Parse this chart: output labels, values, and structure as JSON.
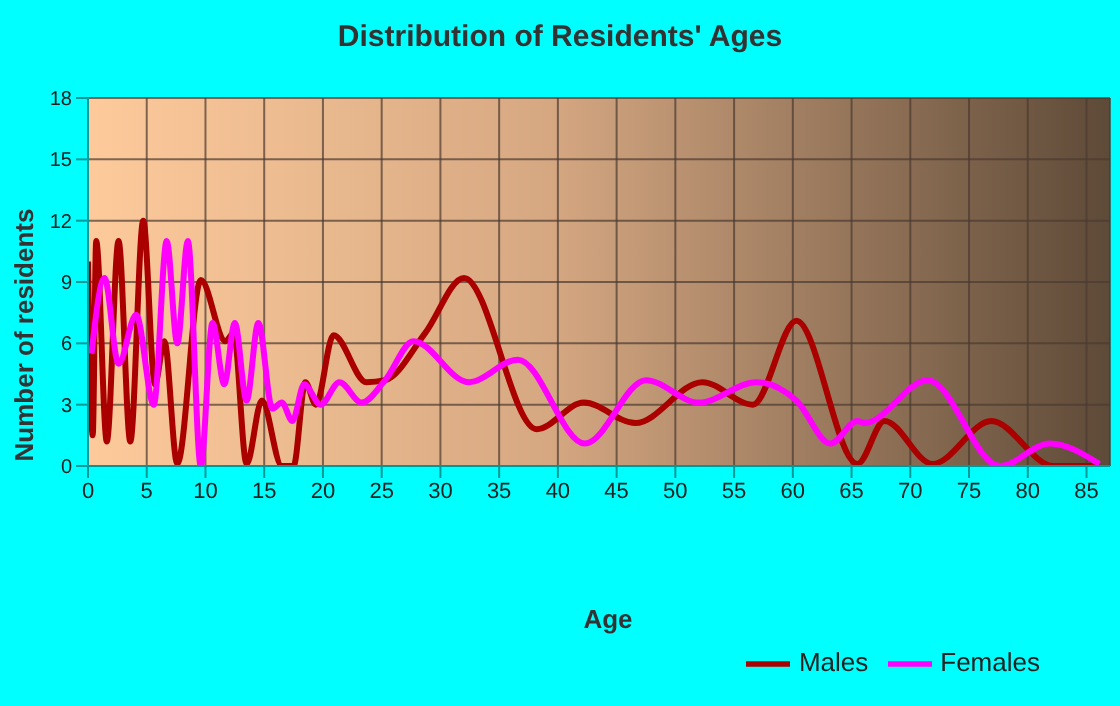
{
  "chart_data": {
    "type": "line",
    "title": "Distribution of Residents' Ages",
    "xlabel": "Age",
    "ylabel": "Number of residents",
    "xlim": [
      0,
      87
    ],
    "xticks": [
      0,
      5,
      10,
      15,
      20,
      25,
      30,
      35,
      40,
      45,
      50,
      55,
      60,
      65,
      70,
      75,
      80,
      85
    ],
    "ylim": [
      0,
      18
    ],
    "yticks": [
      0,
      3,
      6,
      9,
      12,
      15,
      18
    ],
    "grid": true,
    "legend": "bottom right",
    "marker": "none",
    "line_style": "solid",
    "series": [
      {
        "name": "Males",
        "color": "#aa0000",
        "x": [
          0,
          0.4,
          0.7,
          1.6,
          2.6,
          3.6,
          4.7,
          5.7,
          6.5,
          7.6,
          9.6,
          11.7,
          12.4,
          13.5,
          14.8,
          16.5,
          17.5,
          18.5,
          19.4,
          20.9,
          23.7,
          25.3,
          28.7,
          32,
          38.2,
          42.2,
          46.6,
          52.3,
          56.6,
          60.3,
          65.5,
          67.8,
          71.9,
          76.9,
          82.2,
          86.1
        ],
        "values": [
          10,
          1.5,
          11,
          1.2,
          11,
          1.2,
          12,
          4,
          6.1,
          0.1,
          9.1,
          6.1,
          6.5,
          0.1,
          3.2,
          0,
          0,
          4.1,
          3,
          6.4,
          4.1,
          4.2,
          6.5,
          9.2,
          1.8,
          3.1,
          2.1,
          4.1,
          3,
          7.1,
          0.1,
          2.2,
          0.1,
          2.2,
          0,
          0
        ]
      },
      {
        "name": "Females",
        "color": "#ff00ff",
        "x": [
          0.3,
          1.4,
          2.6,
          4.1,
          5.6,
          6.7,
          7.6,
          8.5,
          9.6,
          10.6,
          11.6,
          12.5,
          13.5,
          14.5,
          15.7,
          16.5,
          17.4,
          18.4,
          19.8,
          21.4,
          23.3,
          25.3,
          27.7,
          32.4,
          36.6,
          42.3,
          47.5,
          52,
          56.9,
          60.3,
          63.2,
          65.5,
          66.1,
          71.5,
          77.6,
          81.9,
          86.1
        ],
        "values": [
          5.5,
          9.2,
          5,
          7.4,
          3,
          11,
          6,
          11,
          0,
          7,
          4,
          7,
          3.2,
          7,
          2.8,
          3.1,
          2.2,
          4,
          3,
          4.1,
          3.1,
          4.2,
          6.1,
          4.1,
          5.2,
          1.1,
          4.2,
          3.1,
          4.1,
          3.2,
          1.1,
          2.2,
          2.1,
          4.2,
          0,
          1.1,
          0.1
        ]
      }
    ]
  }
}
